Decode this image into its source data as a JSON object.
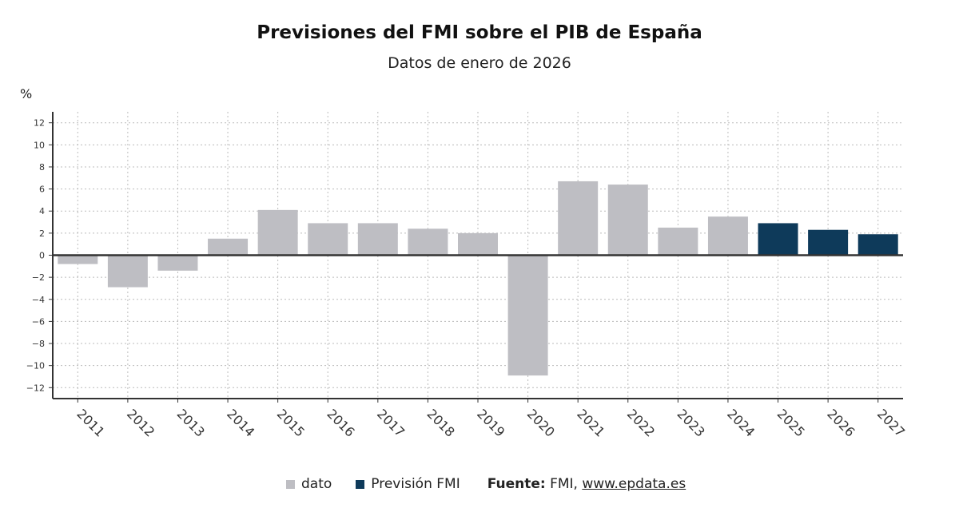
{
  "chart_data": {
    "type": "bar",
    "title": "Previsiones del FMI sobre el PIB de España",
    "subtitle": "Datos de enero de 2026",
    "ylabel": "%",
    "xlabel": "",
    "ylim": [
      -13,
      13
    ],
    "yticks": [
      12,
      10,
      8,
      6,
      4,
      2,
      0,
      -2,
      -4,
      -6,
      -8,
      -10,
      -12
    ],
    "grid": true,
    "legend_position": "bottom",
    "categories": [
      "2011",
      "2012",
      "2013",
      "2014",
      "2015",
      "2016",
      "2017",
      "2018",
      "2019",
      "2020",
      "2021",
      "2022",
      "2023",
      "2024",
      "2025",
      "2026",
      "2027"
    ],
    "values": [
      -0.8,
      -2.9,
      -1.4,
      1.5,
      4.1,
      2.9,
      2.9,
      2.4,
      2.0,
      -10.9,
      6.7,
      6.4,
      2.5,
      3.5,
      2.9,
      2.3,
      1.9
    ],
    "series_of_point": [
      "dato",
      "dato",
      "dato",
      "dato",
      "dato",
      "dato",
      "dato",
      "dato",
      "dato",
      "dato",
      "dato",
      "dato",
      "dato",
      "dato",
      "Previsión FMI",
      "Previsión FMI",
      "Previsión FMI"
    ],
    "series": [
      {
        "name": "dato",
        "color": "#bebec3"
      },
      {
        "name": "Previsión FMI",
        "color": "#0e3a5a"
      }
    ]
  },
  "source": {
    "label": "Fuente:",
    "text": "FMI,",
    "link": "www.epdata.es"
  }
}
